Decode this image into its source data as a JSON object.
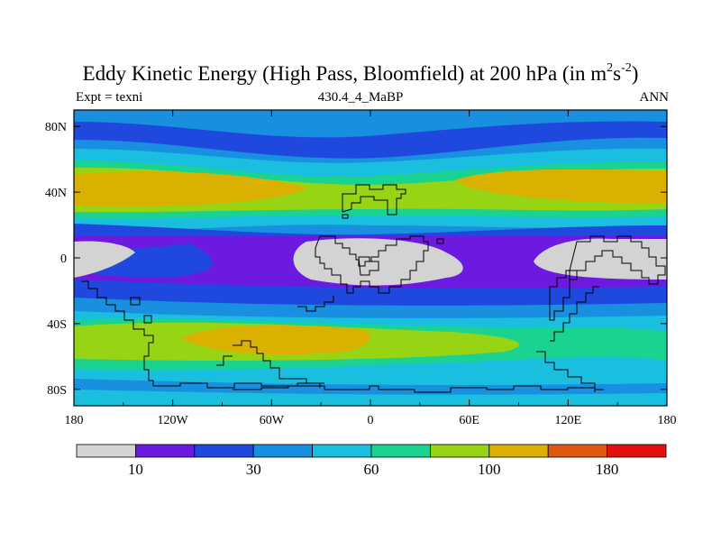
{
  "title": {
    "main": "Eddy Kinetic Energy (High Pass, Bloomfield) at 200 hPa (in m",
    "sup1": "2",
    "mid": "s",
    "sup2": "-2",
    "close": ")"
  },
  "subtitle_left": "Expt = texni",
  "subtitle_center": "430.4_4_MaBP",
  "subtitle_right": "ANN",
  "axes": {
    "x_ticks": [
      {
        "value": -180,
        "label": "180"
      },
      {
        "value": -120,
        "label": "120W"
      },
      {
        "value": -60,
        "label": "60W"
      },
      {
        "value": 0,
        "label": "0"
      },
      {
        "value": 60,
        "label": "60E"
      },
      {
        "value": 120,
        "label": "120E"
      },
      {
        "value": 180,
        "label": "180"
      }
    ],
    "y_ticks": [
      {
        "value": 80,
        "label": "80N"
      },
      {
        "value": 40,
        "label": "40N"
      },
      {
        "value": 0,
        "label": "0"
      },
      {
        "value": -40,
        "label": "40S"
      },
      {
        "value": -80,
        "label": "80S"
      }
    ],
    "x_range": [
      -180,
      180
    ],
    "y_range": [
      -90,
      90
    ]
  },
  "colorbar": {
    "colors": [
      "#d3d3d3",
      "#6c19e0",
      "#1f49de",
      "#1890df",
      "#1abfe0",
      "#1ad390",
      "#96d414",
      "#dab100",
      "#df5810",
      "#e2100e"
    ],
    "labels": [
      {
        "boundary": 1,
        "text": "10"
      },
      {
        "boundary": 3,
        "text": "30"
      },
      {
        "boundary": 5,
        "text": "60"
      },
      {
        "boundary": 7,
        "text": "100"
      },
      {
        "boundary": 9,
        "text": "180"
      }
    ]
  },
  "chart_data": {
    "type": "heatmap",
    "title": "Eddy Kinetic Energy (High Pass, Bloomfield) at 200 hPa (in m2s-2)",
    "x_range": [
      -180,
      180
    ],
    "y_range": [
      -90,
      90
    ],
    "field_zonal_profile": [
      {
        "lat": 90,
        "level": 3
      },
      {
        "lat": 80,
        "level": 2
      },
      {
        "lat": 70,
        "level": 3
      },
      {
        "lat": 60,
        "level": 4
      },
      {
        "lat": 50,
        "level": 5
      },
      {
        "lat": 40,
        "level": 7
      },
      {
        "lat": 30,
        "level": 5
      },
      {
        "lat": 22,
        "level": 3
      },
      {
        "lat": 15,
        "level": 1
      },
      {
        "lat": 0,
        "level": 0
      },
      {
        "lat": -15,
        "level": 1
      },
      {
        "lat": -25,
        "level": 3
      },
      {
        "lat": -35,
        "level": 5
      },
      {
        "lat": -48,
        "level": 7
      },
      {
        "lat": -60,
        "level": 5
      },
      {
        "lat": -70,
        "level": 4
      },
      {
        "lat": -78,
        "level": 3
      },
      {
        "lat": -85,
        "level": 4
      },
      {
        "lat": -90,
        "level": 3
      }
    ]
  }
}
